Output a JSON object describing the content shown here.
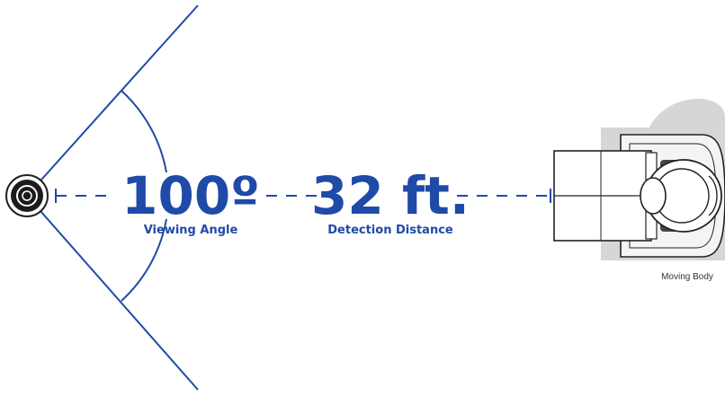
{
  "angle": {
    "value": "100º",
    "label": "Viewing Angle"
  },
  "distance": {
    "value": "32 ft.",
    "label": "Detection Distance"
  },
  "body_label": "Moving Body",
  "colors": {
    "accent": "#1f4aa8",
    "silhouette": "#d6d6d6",
    "outline": "#222222"
  },
  "icons": {
    "sensor": "motion-sensor-icon",
    "person": "person-topdown-icon"
  }
}
